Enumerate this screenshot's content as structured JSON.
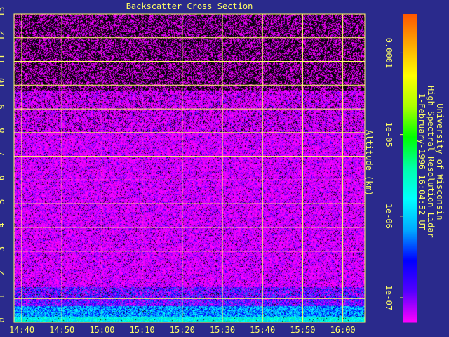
{
  "chart_data": {
    "type": "heatmap",
    "title": "Backscatter Cross Section",
    "xlabel": "",
    "ylabel": "Altitude (km)",
    "x_ticks": [
      "14:40",
      "14:50",
      "15:00",
      "15:10",
      "15:20",
      "15:30",
      "15:40",
      "15:50",
      "16:00"
    ],
    "y_ticks": [
      0,
      1,
      2,
      3,
      4,
      5,
      6,
      7,
      8,
      9,
      10,
      11,
      12,
      13
    ],
    "ylim": [
      0,
      13
    ],
    "colorbar": {
      "scale": "log",
      "range": [
        5e-08,
        0.0003
      ],
      "tick_labels": [
        "1e-07",
        "1e-06",
        "1e-05",
        "0.0001"
      ],
      "tick_values": [
        1e-07,
        1e-06,
        1e-05,
        0.0001
      ],
      "colors": [
        "#ff00ff",
        "#5500ff",
        "#0000ff",
        "#00aaff",
        "#00ffff",
        "#00ffaa",
        "#00ff00",
        "#aaff00",
        "#ffff00",
        "#ffaa00",
        "#ff5500"
      ]
    },
    "grid": true
  },
  "credits": {
    "line1": "University of Wisconsin",
    "line2": "High Spectral Resolution Lidar",
    "line3": "1-February-1996 16:04:52 UT"
  },
  "colors": {
    "background": "#2a2a8c",
    "text": "#ffff66",
    "grid": "#ffff66"
  }
}
